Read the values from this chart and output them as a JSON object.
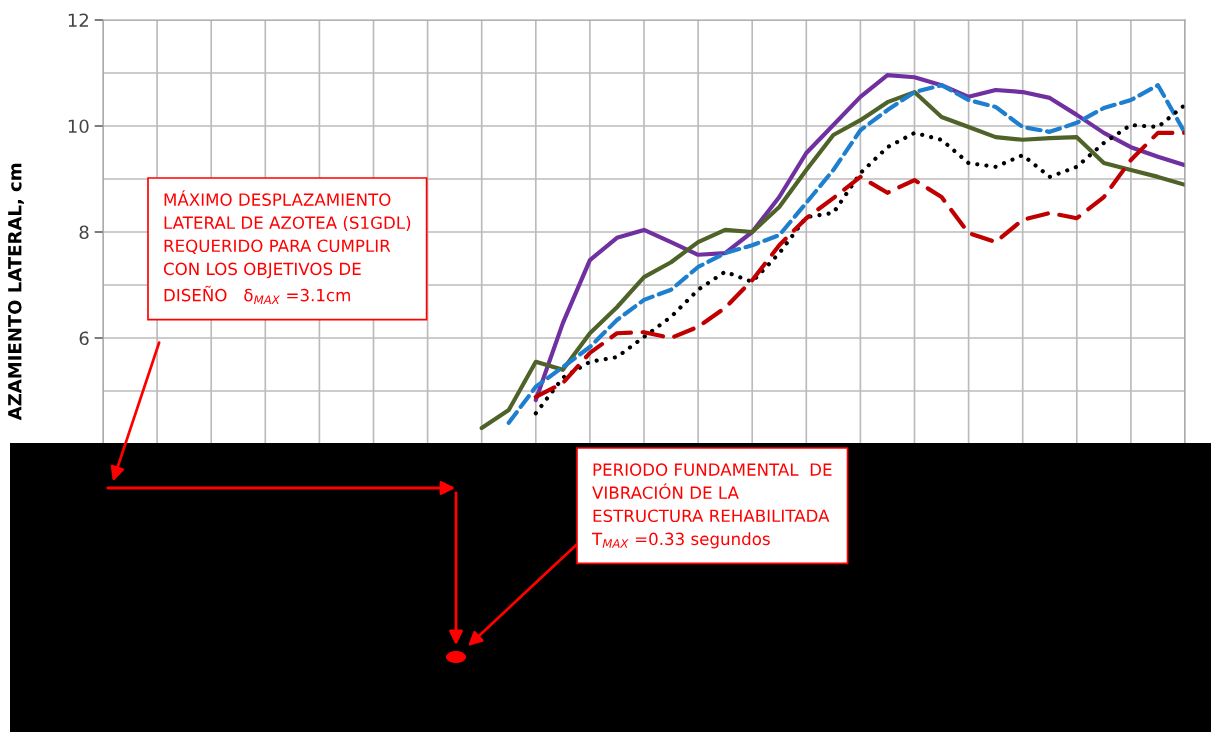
{
  "chart_data": {
    "type": "line",
    "ylabel": "AZAMIENTO LATERAL, cm",
    "categories": [
      null,
      null,
      null,
      null,
      null,
      null,
      null,
      null,
      null,
      null,
      null,
      null,
      null,
      null,
      null,
      null,
      null,
      null,
      null,
      null,
      null,
      null,
      null,
      null,
      null,
      null,
      null,
      null,
      null,
      null,
      null,
      null,
      null,
      null,
      null,
      null,
      null,
      null,
      null,
      null,
      null
    ],
    "ylim": [
      4,
      12
    ],
    "yticks": [
      {
        "value": 4,
        "label": null
      },
      {
        "value": 5,
        "label": null
      },
      6,
      {
        "value": 7,
        "label": null
      },
      8,
      {
        "value": 9,
        "label": null
      },
      10,
      {
        "value": 11,
        "label": null
      },
      12
    ],
    "grid": true,
    "marker": "none",
    "series": [
      {
        "color": "#7030a0",
        "line_style": "solid",
        "values": [
          null,
          null,
          null,
          null,
          null,
          null,
          null,
          null,
          null,
          null,
          null,
          null,
          null,
          null,
          null,
          null,
          4.83,
          6.28,
          7.47,
          7.89,
          8.04,
          7.81,
          7.57,
          7.6,
          8.0,
          8.66,
          9.49,
          10.02,
          10.55,
          10.96,
          10.92,
          10.77,
          10.55,
          10.68,
          10.64,
          10.53,
          10.21,
          9.87,
          9.6,
          9.42,
          9.26
        ]
      },
      {
        "color": "#4f6228",
        "line_style": "solid",
        "values": [
          null,
          null,
          null,
          null,
          null,
          null,
          null,
          null,
          null,
          null,
          null,
          null,
          null,
          null,
          4.3,
          4.64,
          5.55,
          5.4,
          6.09,
          6.58,
          7.15,
          7.43,
          7.81,
          8.04,
          8.0,
          8.47,
          9.17,
          9.83,
          10.11,
          10.45,
          10.64,
          10.17,
          9.98,
          9.79,
          9.74,
          9.77,
          9.79,
          9.3,
          9.17,
          9.04,
          8.89
        ]
      },
      {
        "color": "#1f7fcf",
        "line_style": "dashed",
        "values": [
          null,
          null,
          null,
          null,
          null,
          null,
          null,
          null,
          null,
          null,
          null,
          null,
          null,
          null,
          null,
          4.4,
          5.08,
          5.45,
          5.83,
          6.34,
          6.72,
          6.91,
          7.34,
          7.6,
          7.75,
          7.94,
          8.55,
          9.17,
          9.92,
          10.3,
          10.64,
          10.77,
          10.49,
          10.36,
          9.98,
          9.89,
          10.06,
          10.34,
          10.49,
          10.77,
          9.87
        ]
      },
      {
        "color": "#000000",
        "line_style": "dotted",
        "values": [
          null,
          null,
          null,
          null,
          null,
          null,
          null,
          null,
          null,
          null,
          null,
          null,
          null,
          null,
          null,
          null,
          4.58,
          5.25,
          5.55,
          5.64,
          6.02,
          6.4,
          6.91,
          7.25,
          7.06,
          7.6,
          8.28,
          8.36,
          9.11,
          9.6,
          9.87,
          9.74,
          9.3,
          9.23,
          9.45,
          9.04,
          9.23,
          9.68,
          10.02,
          9.98,
          10.4
        ]
      },
      {
        "color": "#c00000",
        "line_style": "longdash",
        "values": [
          null,
          null,
          null,
          null,
          null,
          null,
          null,
          null,
          null,
          null,
          null,
          null,
          null,
          null,
          null,
          null,
          4.89,
          5.15,
          5.72,
          6.09,
          6.11,
          6.0,
          6.21,
          6.57,
          7.09,
          7.75,
          8.26,
          8.64,
          9.04,
          8.74,
          8.98,
          8.66,
          7.98,
          7.81,
          8.23,
          8.36,
          8.26,
          8.66,
          9.36,
          9.87,
          9.87
        ]
      }
    ],
    "annotations": [
      "MÁXIMO DESPLAZAMIENTO\nLATERAL DE AZOTEA (S1GDL)\nREQUERIDO PARA CUMPLIR\nCON LOS OBJETIVOS DE\nDISEÑO   δ$_{MAX}$ =3.1cm",
      "PERIODO FUNDAMENTAL  DE\nVIBRACIÓN DE LA\nESTRUCTURA REHABILITADA\nT$_{MAX}$ =0.33 segundos"
    ]
  }
}
